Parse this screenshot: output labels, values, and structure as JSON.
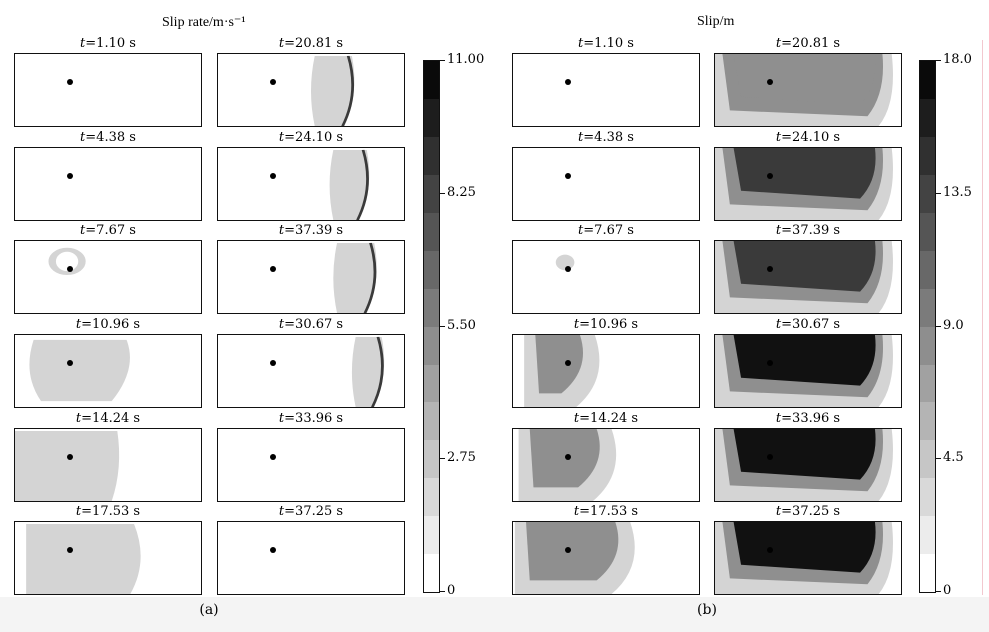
{
  "figure": {
    "panel_a": {
      "title": "Slip rate/m·s⁻¹",
      "sublabel": "(a)",
      "colorbar": {
        "ticks": [
          "11.00",
          "8.25",
          "5.50",
          "2.75",
          "0"
        ],
        "levels": 14
      },
      "left_column": [
        "=1.10 s",
        "=4.38 s",
        "=7.67 s",
        "=10.96 s",
        "=14.24 s",
        "=17.53 s"
      ],
      "right_column": [
        "=20.81 s",
        "=24.10 s",
        "=37.39 s",
        "=30.67 s",
        "=33.96 s",
        "=37.25 s"
      ]
    },
    "panel_b": {
      "title": "Slip/m",
      "sublabel": "(b)",
      "colorbar": {
        "ticks": [
          "18.0",
          "13.5",
          "9.0",
          "4.5",
          "0"
        ],
        "levels": 14
      },
      "left_column": [
        "=1.10 s",
        "=4.38 s",
        "=7.67 s",
        "=10.96 s",
        "=14.24 s",
        "=17.53 s"
      ],
      "right_column": [
        "=20.81 s",
        "=24.10 s",
        "=37.39 s",
        "=30.67 s",
        "=33.96 s",
        "=37.25 s"
      ]
    },
    "time_symbol": "t",
    "colors": {
      "light": "#d4d4d4",
      "mid": "#8f8f8f",
      "dark": "#3a3a3a",
      "darkest": "#111111"
    }
  }
}
